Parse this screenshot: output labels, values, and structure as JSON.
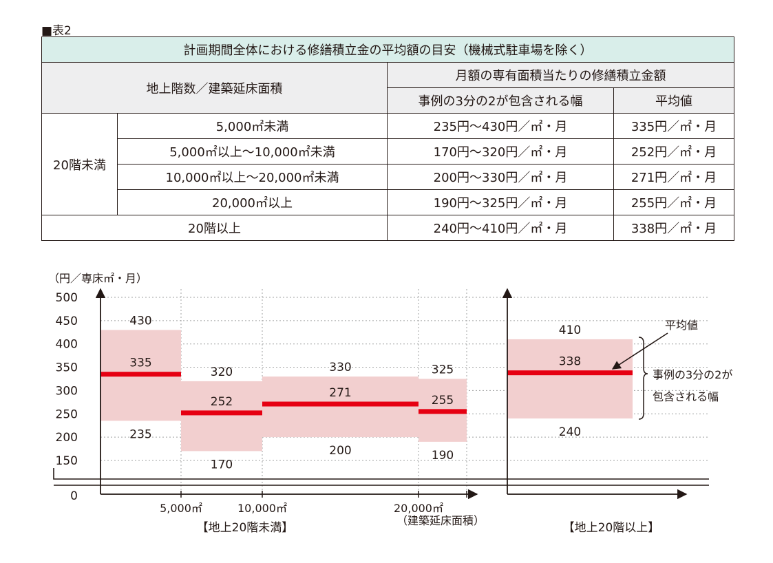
{
  "label": "■表2",
  "table": {
    "title": "計画期間全体における修繕積立金の平均額の目安（機械式駐車場を除く）",
    "col_area": "地上階数／建築延床面積",
    "col_monthly": "月額の専有面積当たりの修繕積立金額",
    "col_range": "事例の3分の2が包含される幅",
    "col_avg": "平均値",
    "group_under20": "20階未満",
    "rows": [
      {
        "area": "5,000㎡未満",
        "range": "235円〜430円／㎡・月",
        "avg": "335円／㎡・月"
      },
      {
        "area": "5,000㎡以上〜10,000㎡未満",
        "range": "170円〜320円／㎡・月",
        "avg": "252円／㎡・月"
      },
      {
        "area": "10,000㎡以上〜20,000㎡未満",
        "range": "200円〜330円／㎡・月",
        "avg": "271円／㎡・月"
      },
      {
        "area": "20,000㎡以上",
        "range": "190円〜325円／㎡・月",
        "avg": "255円／㎡・月"
      },
      {
        "area": "20階以上",
        "range": "240円〜410円／㎡・月",
        "avg": "338円／㎡・月"
      }
    ]
  },
  "chart_data": {
    "type": "bar",
    "ylabel": "（円／専床㎡・月）",
    "yticks": [
      500,
      450,
      400,
      350,
      300,
      250,
      200,
      150,
      0
    ],
    "xticks": [
      "5,000㎡",
      "10,000㎡",
      "20,000㎡"
    ],
    "xlabel": "（建築延床面積）",
    "group_labels": [
      "【地上20階未満】",
      "【地上20階以上】"
    ],
    "legend_avg": "平均値",
    "legend_range": [
      "事例の3分の2が",
      "包含される幅"
    ],
    "colors": {
      "range": "#f2cfcf",
      "avg": "#e60012"
    },
    "series": [
      {
        "low": 235,
        "high": 430,
        "avg": 335
      },
      {
        "low": 170,
        "high": 320,
        "avg": 252
      },
      {
        "low": 200,
        "high": 330,
        "avg": 271
      },
      {
        "low": 190,
        "high": 325,
        "avg": 255
      },
      {
        "low": 240,
        "high": 410,
        "avg": 338
      }
    ]
  }
}
